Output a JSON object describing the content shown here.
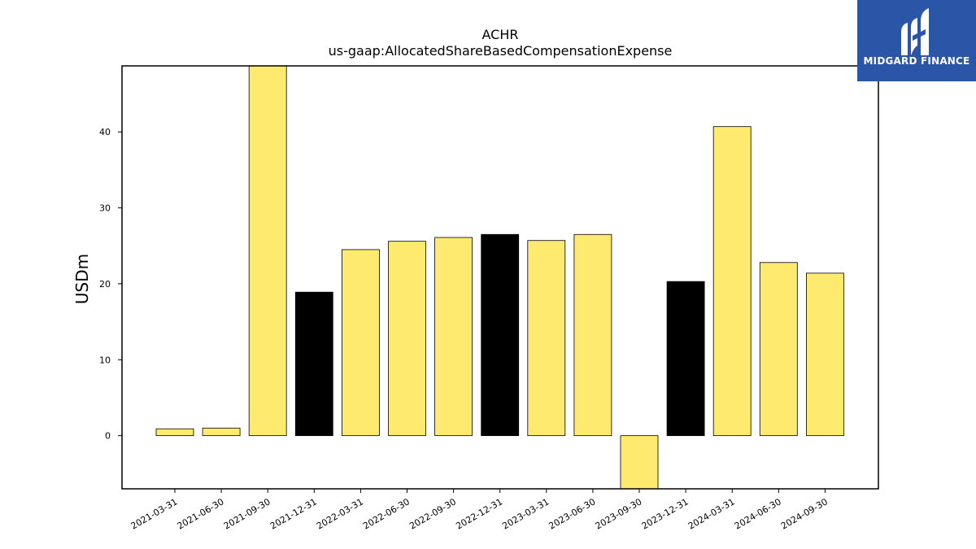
{
  "chart_data": {
    "type": "bar",
    "title": "ACHR",
    "subtitle": "us-gaap:AllocatedShareBasedCompensationExpense",
    "ylabel": "USDm",
    "xlabel": "",
    "ylim": [
      -7,
      48.7
    ],
    "yticks": [
      0,
      10,
      20,
      30,
      40
    ],
    "grid": false,
    "categories": [
      "2021-03-31",
      "2021-06-30",
      "2021-09-30",
      "2021-12-31",
      "2022-03-31",
      "2022-06-30",
      "2022-09-30",
      "2022-12-31",
      "2023-03-31",
      "2023-06-30",
      "2023-09-30",
      "2023-12-31",
      "2024-03-31",
      "2024-06-30",
      "2024-09-30"
    ],
    "values": [
      0.9,
      1.0,
      48.7,
      18.9,
      24.5,
      25.6,
      26.1,
      26.5,
      25.7,
      26.5,
      -7.0,
      20.3,
      40.7,
      22.8,
      21.4
    ],
    "bar_colors": [
      "#fdea6f",
      "#fdea6f",
      "#fdea6f",
      "#000000",
      "#fdea6f",
      "#fdea6f",
      "#fdea6f",
      "#000000",
      "#fdea6f",
      "#fdea6f",
      "#fdea6f",
      "#000000",
      "#fdea6f",
      "#fdea6f",
      "#fdea6f"
    ]
  },
  "logo": {
    "text": "MIDGARD FINANCE",
    "color": "#2b56a8"
  }
}
